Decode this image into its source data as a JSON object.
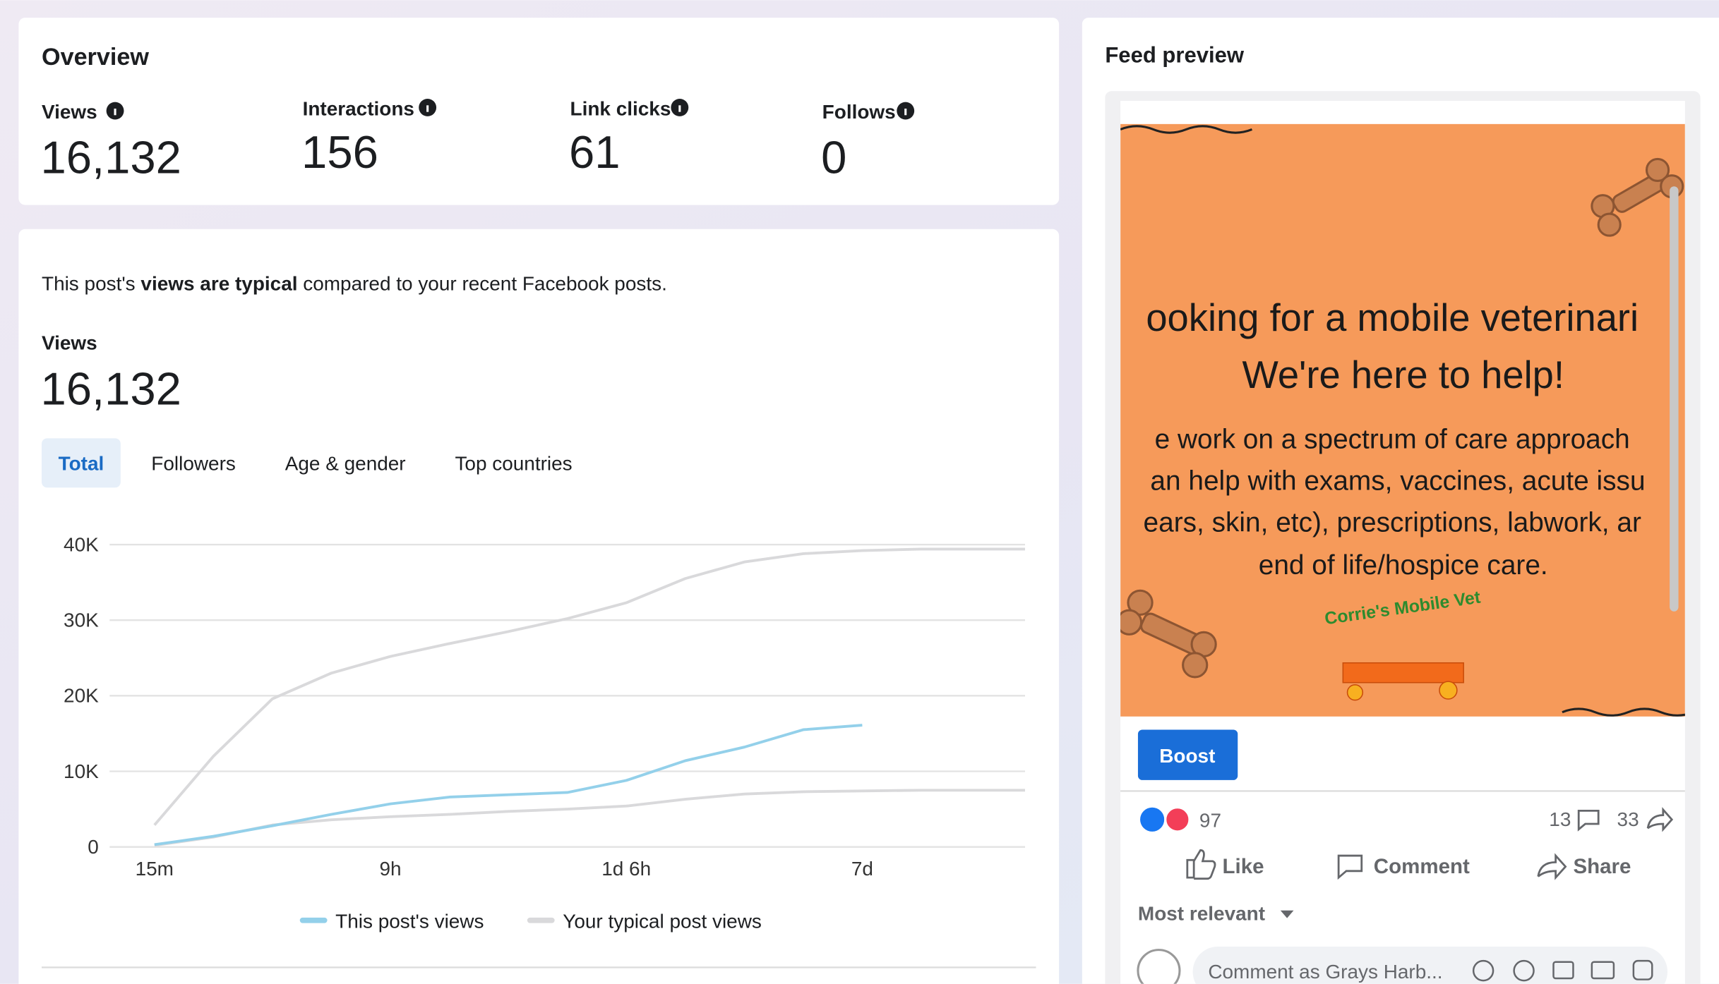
{
  "overview": {
    "title": "Overview",
    "metrics": [
      {
        "label": "Views",
        "value": "16,132"
      },
      {
        "label": "Interactions",
        "value": "156"
      },
      {
        "label": "Link clicks",
        "value": "61"
      },
      {
        "label": "Follows",
        "value": "0"
      }
    ]
  },
  "insight": {
    "before": "This post's ",
    "bold": "views are typical",
    "after": " compared to your recent Facebook posts."
  },
  "views": {
    "label": "Views",
    "value": "16,132"
  },
  "tabs": [
    "Total",
    "Followers",
    "Age & gender",
    "Top countries"
  ],
  "chart_data": {
    "type": "line",
    "xlim": [
      -0.19,
      3.69
    ],
    "xticks": [
      {
        "value": 0,
        "label": "15m"
      },
      {
        "value": 1,
        "label": "9h"
      },
      {
        "value": 2,
        "label": "1d 6h"
      },
      {
        "value": 3,
        "label": "7d"
      }
    ],
    "ylim": [
      0,
      40000
    ],
    "yticks": [
      {
        "value": 0,
        "label": "0"
      },
      {
        "value": 10000,
        "label": "10K"
      },
      {
        "value": 20000,
        "label": "20K"
      },
      {
        "value": 30000,
        "label": "30K"
      },
      {
        "value": 40000,
        "label": "40K"
      }
    ],
    "grid": true,
    "series": [
      {
        "name": "This post's views",
        "color": "#93d0ea",
        "x": [
          0,
          0.25,
          0.5,
          0.75,
          1,
          1.25,
          1.5,
          1.75,
          2,
          2.25,
          2.5,
          2.75,
          3
        ],
        "values": [
          300,
          1400,
          2800,
          4300,
          5700,
          6600,
          6900,
          7200,
          8800,
          11400,
          13200,
          15500,
          16100
        ]
      },
      {
        "name": "Your typical post views",
        "color": "#d9d9db",
        "x": [
          0,
          0.25,
          0.5,
          0.75,
          1,
          1.25,
          1.5,
          1.75,
          2,
          2.25,
          2.5,
          2.75,
          3,
          3.25,
          3.69
        ],
        "values": [
          2900,
          12000,
          19600,
          23000,
          25200,
          26900,
          28500,
          30200,
          32300,
          35500,
          37700,
          38800,
          39200,
          39400,
          39400
        ],
        "values_low": [
          200,
          1300,
          2900,
          3600,
          4000,
          4300,
          4700,
          5000,
          5400,
          6300,
          7000,
          7300,
          7400,
          7500,
          7500
        ]
      }
    ]
  },
  "feed_preview": {
    "title": "Feed preview",
    "image_lines": [
      "ooking for a mobile veterinari",
      "We're here to help!",
      "e work on a spectrum of care approach",
      "an help with exams, vaccines, acute issu",
      "ears, skin, etc), prescriptions, labwork, ar",
      "end of life/hospice care."
    ],
    "logo": "Corrie's Mobile Vet",
    "boost": "Boost",
    "reactions": "97",
    "comments": "13",
    "shares": "33",
    "actions": [
      "Like",
      "Comment",
      "Share"
    ],
    "sort": "Most relevant",
    "comment_placeholder": "Comment as Grays Harb..."
  }
}
